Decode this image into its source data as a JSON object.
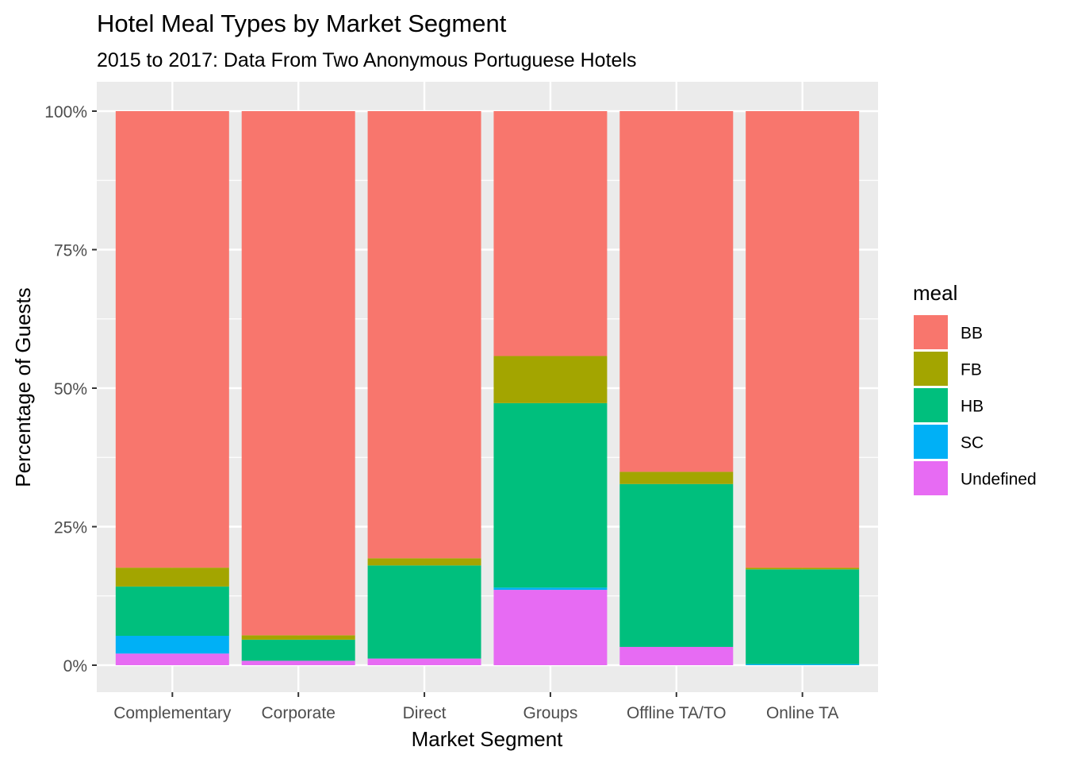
{
  "chart_data": {
    "type": "bar",
    "stacked": true,
    "percent_stacked": true,
    "title": "Hotel Meal Types by Market Segment",
    "subtitle": "2015 to 2017: Data From Two Anonymous Portuguese Hotels",
    "xlabel": "Market Segment",
    "ylabel": "Percentage of Guests",
    "ylim": [
      0,
      1
    ],
    "y_ticks": [
      0,
      0.25,
      0.5,
      0.75,
      1.0
    ],
    "y_tick_labels": [
      "0%",
      "25%",
      "50%",
      "75%",
      "100%"
    ],
    "categories": [
      "Complementary",
      "Corporate",
      "Direct",
      "Groups",
      "Offline TA/TO",
      "Online TA"
    ],
    "legend": {
      "title": "meal",
      "position": "right"
    },
    "grid": true,
    "panel_background": "#EBEBEB",
    "series": [
      {
        "name": "Undefined",
        "color": "#E76BF3",
        "values": [
          0.021,
          0.008,
          0.012,
          0.136,
          0.033,
          0.0
        ]
      },
      {
        "name": "SC",
        "color": "#00B0F6",
        "values": [
          0.032,
          0.0,
          0.0,
          0.004,
          0.0,
          0.002
        ]
      },
      {
        "name": "HB",
        "color": "#00BF7D",
        "values": [
          0.089,
          0.038,
          0.168,
          0.333,
          0.294,
          0.171
        ]
      },
      {
        "name": "FB",
        "color": "#A3A500",
        "values": [
          0.034,
          0.008,
          0.013,
          0.085,
          0.022,
          0.003
        ]
      },
      {
        "name": "BB",
        "color": "#F8766D",
        "values": [
          0.824,
          0.946,
          0.807,
          0.442,
          0.651,
          0.824
        ]
      }
    ],
    "legend_order": [
      "BB",
      "FB",
      "HB",
      "SC",
      "Undefined"
    ]
  }
}
